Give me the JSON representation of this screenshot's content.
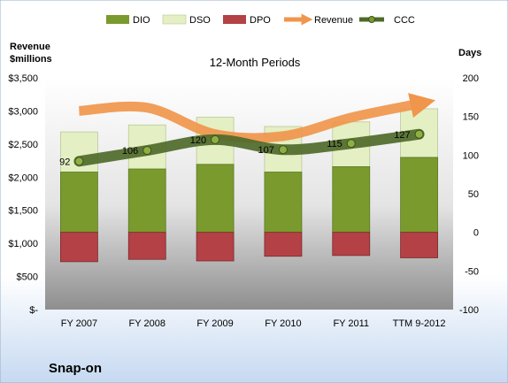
{
  "chart_data": {
    "type": "bar",
    "title": "12-Month Periods",
    "company": "Snap-on",
    "left_axis": {
      "label_line1": "Revenue",
      "label_line2": "$millions",
      "ticks": [
        "$3,500",
        "$3,000",
        "$2,500",
        "$2,000",
        "$1,500",
        "$1,000",
        "$500",
        "$-"
      ],
      "ylim": [
        0,
        3500
      ]
    },
    "right_axis": {
      "label": "Days",
      "ticks": [
        "200",
        "150",
        "100",
        "50",
        "0",
        "-50",
        "-100"
      ],
      "ylim": [
        -100,
        200
      ]
    },
    "categories": [
      "FY 2007",
      "FY 2008",
      "FY 2009",
      "FY 2010",
      "FY 2011",
      "TTM 9-2012"
    ],
    "series": [
      {
        "name": "DIO",
        "axis": "days",
        "values": [
          78,
          82,
          88,
          78,
          85,
          97
        ],
        "color": "#7a9a2e"
      },
      {
        "name": "DSO",
        "axis": "days",
        "values": [
          52,
          57,
          61,
          59,
          58,
          63
        ],
        "color": "#e4efc4"
      },
      {
        "name": "DPO",
        "axis": "days",
        "values": [
          -38,
          -35,
          -37,
          -31,
          -30,
          -33
        ],
        "color": "#b34145"
      },
      {
        "name": "Revenue",
        "axis": "revenue",
        "values": [
          3000,
          3050,
          2650,
          2620,
          2900,
          3100
        ],
        "color": "#f0964c"
      },
      {
        "name": "CCC",
        "axis": "days",
        "values": [
          92,
          106,
          120,
          107,
          115,
          127
        ],
        "color": "#4f6a2a"
      }
    ],
    "data_labels": [
      "92",
      "106",
      "120",
      "107",
      "115",
      "127"
    ],
    "legend_position": "top",
    "grid": false
  }
}
